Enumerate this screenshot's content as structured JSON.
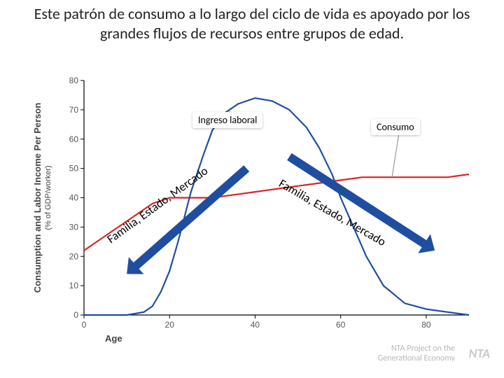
{
  "title": "Este patrón de consumo a lo largo del ciclo de vida es apoyado por los grandes flujos de recursos entre grupos de edad.",
  "chart": {
    "type": "line",
    "y_axis_label_line1": "Consumption and Labor Income Per Person",
    "y_axis_label_line2": "(% of GDP/worker)",
    "x_axis_label": "Age",
    "xlim": [
      0,
      90
    ],
    "ylim": [
      0,
      80
    ],
    "xtick_step": 20,
    "ytick_step": 10,
    "tick_fontsize": 12,
    "axis_label_fontsize": 13,
    "background_color": "#ffffff",
    "axis_color": "#000000",
    "axis_line_width": 1.2,
    "tick_len": 5,
    "series": {
      "consumption": {
        "color": "#d62728",
        "width": 2.2,
        "x": [
          0,
          2,
          5,
          8,
          12,
          16,
          20,
          25,
          30,
          35,
          40,
          45,
          50,
          55,
          60,
          65,
          70,
          75,
          80,
          85,
          90
        ],
        "y": [
          22,
          24,
          27,
          30,
          34,
          38,
          40,
          40,
          40,
          41,
          42,
          43,
          44,
          45,
          46,
          47,
          47,
          47,
          47,
          47,
          48
        ]
      },
      "labor_income": {
        "color": "#1f4ea1",
        "width": 2.2,
        "x": [
          0,
          5,
          10,
          14,
          16,
          18,
          20,
          22,
          25,
          28,
          30,
          33,
          36,
          40,
          44,
          48,
          52,
          55,
          58,
          60,
          63,
          66,
          70,
          75,
          80,
          85,
          90
        ],
        "y": [
          0,
          0,
          0,
          1,
          3,
          8,
          15,
          25,
          42,
          55,
          63,
          69,
          72,
          74,
          73,
          70,
          64,
          57,
          48,
          40,
          30,
          20,
          10,
          4,
          2,
          1,
          0
        ]
      }
    },
    "labels": {
      "ingreso": "Ingreso laboral",
      "consumo": "Consumo",
      "ingreso_fontsize": 14,
      "consumo_fontsize": 14
    },
    "arrows": {
      "left_text": "Familia, Estado, Mercado",
      "right_text": "Familia, Estado, Mercado",
      "text_fontsize": 17,
      "text_color": "#000000",
      "arrow_color": "#1f4ea1",
      "arrow_width": 12,
      "arrow_head": 18
    }
  },
  "footer": {
    "line1": "NTA Project on the",
    "line2": "Generational Economy",
    "logo_text": "NTA"
  }
}
